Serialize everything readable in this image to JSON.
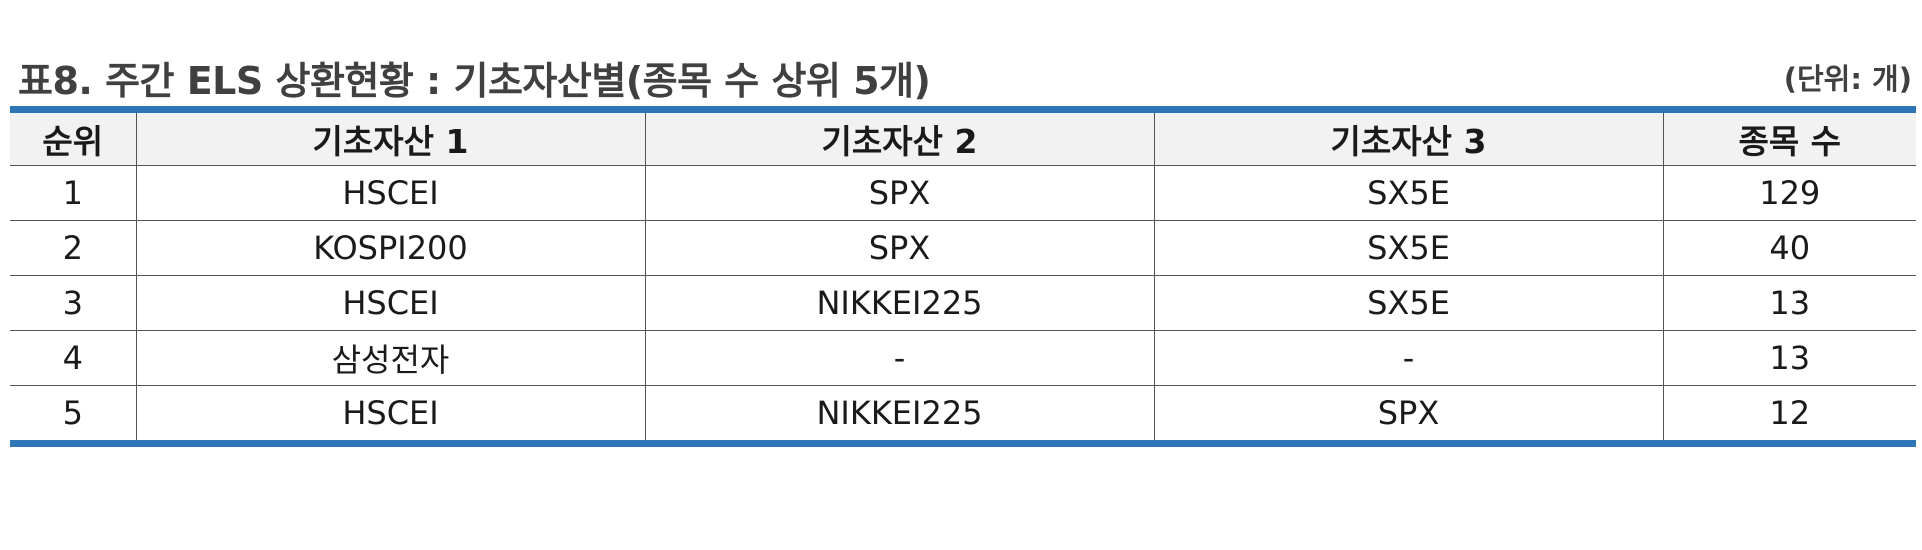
{
  "title": "표8. 주간 ELS 상환현황 : 기초자산별(종목 수 상위 5개)",
  "unit": "(단위: 개)",
  "columns": [
    "순위",
    "기초자산 1",
    "기초자산 2",
    "기초자산 3",
    "종목 수"
  ],
  "rows": [
    [
      "1",
      "HSCEI",
      "SPX",
      "SX5E",
      "129"
    ],
    [
      "2",
      "KOSPI200",
      "SPX",
      "SX5E",
      "40"
    ],
    [
      "3",
      "HSCEI",
      "NIKKEI225",
      "SX5E",
      "13"
    ],
    [
      "4",
      "삼성전자",
      "-",
      "-",
      "13"
    ],
    [
      "5",
      "HSCEI",
      "NIKKEI225",
      "SPX",
      "12"
    ]
  ],
  "colors": {
    "accent_border": "#2e75b6",
    "header_background": "#f2f2f2",
    "title_text": "#404040"
  }
}
